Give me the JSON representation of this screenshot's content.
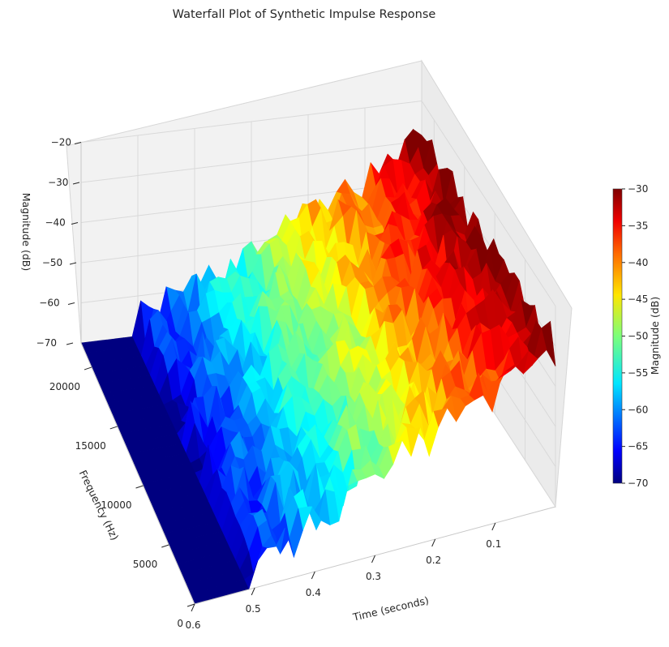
{
  "chart_data": {
    "type": "surface3d",
    "title": "Waterfall Plot of Synthetic Impulse Response",
    "xlabel": "Time (seconds)",
    "ylabel": "Frequency (Hz)",
    "zlabel": "Magnitude (dB)",
    "colorbar_label": "Magnitude (dB)",
    "colormap": "jet",
    "xlim": [
      0,
      0.6
    ],
    "ylim": [
      0,
      22050
    ],
    "zlim": [
      -70,
      -20
    ],
    "clim": [
      -70,
      -30
    ],
    "x_ticks": [
      "0.1",
      "0.2",
      "0.3",
      "0.4",
      "0.5",
      "0.6"
    ],
    "y_ticks": [
      "0",
      "5000",
      "10000",
      "15000",
      "20000"
    ],
    "z_ticks": [
      "−70",
      "−60",
      "−50",
      "−40",
      "−30",
      "−20"
    ],
    "colorbar_ticks": [
      "−70",
      "−65",
      "−60",
      "−55",
      "−50",
      "−45",
      "−40",
      "−35",
      "−30"
    ],
    "surface": {
      "peak_db_at_t0": -30,
      "decay_db_per_second": 70,
      "floor_db": -70,
      "noise_amplitude_db": 5
    },
    "grid": true
  }
}
